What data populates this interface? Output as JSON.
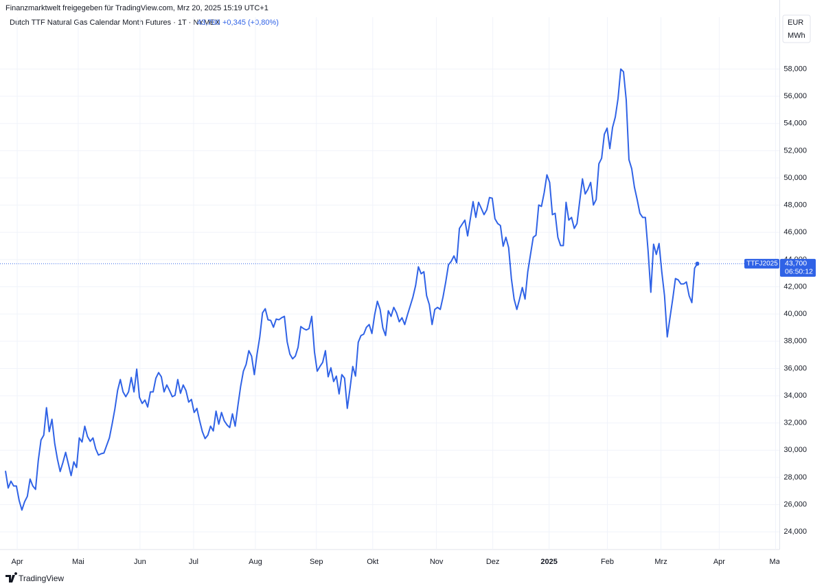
{
  "header": {
    "credit": "Finanzmarktwelt freigegeben für TradingView.com, Mrz 20, 2025 15:19 UTC+1",
    "logo": "TradingView"
  },
  "chart_data": {
    "type": "line",
    "title": "Dutch TTF Natural Gas Calendar Month Futures · 1T · NYMEX",
    "price_label": "43,700",
    "change_label": "+0,345 (+0,80%)",
    "symbol": "TTFJ2025",
    "last_label": "43,700",
    "countdown": "06:50:12",
    "unit_currency": "EUR",
    "unit_measure": "MWh",
    "grid": true,
    "series": [
      {
        "name": "TTFJ2025",
        "color": "#2f62e6",
        "values": [
          28480,
          27220,
          27720,
          27370,
          27370,
          26310,
          25600,
          26210,
          26610,
          27880,
          27370,
          27120,
          29240,
          30750,
          31100,
          33120,
          31360,
          32270,
          30500,
          29340,
          28430,
          29090,
          29840,
          28990,
          28130,
          29140,
          28730,
          30900,
          30600,
          31760,
          31000,
          30650,
          30900,
          30100,
          29640,
          29740,
          29790,
          30350,
          30900,
          31910,
          33020,
          34380,
          35190,
          34280,
          33930,
          34280,
          35340,
          34280,
          35950,
          33880,
          33430,
          33680,
          33170,
          34280,
          34280,
          35290,
          35700,
          35390,
          34280,
          34790,
          34380,
          33930,
          34030,
          35190,
          34180,
          34790,
          34380,
          33530,
          33730,
          32770,
          33070,
          32160,
          31360,
          30850,
          31100,
          31760,
          31410,
          32870,
          31910,
          32770,
          32160,
          31860,
          31660,
          32670,
          31760,
          33270,
          34690,
          35800,
          36300,
          37310,
          36910,
          35550,
          37060,
          38320,
          40090,
          40390,
          39580,
          39530,
          39030,
          39630,
          39580,
          39730,
          39830,
          37970,
          37060,
          36710,
          36910,
          37560,
          39080,
          38930,
          38830,
          38930,
          39830,
          37210,
          35800,
          36150,
          36450,
          37310,
          35390,
          36050,
          35040,
          35440,
          34130,
          35550,
          35290,
          33070,
          34540,
          36150,
          35440,
          37920,
          38420,
          38520,
          39030,
          39230,
          38570,
          39940,
          40940,
          40340,
          38980,
          38420,
          40240,
          39830,
          40490,
          40090,
          39430,
          39730,
          39230,
          39940,
          40590,
          41250,
          42110,
          43470,
          42960,
          43110,
          41350,
          40690,
          39230,
          40340,
          40490,
          40340,
          41250,
          42360,
          43620,
          43870,
          44270,
          43770,
          46290,
          46600,
          46900,
          45740,
          47000,
          48260,
          47100,
          48210,
          47760,
          47300,
          47660,
          48560,
          48510,
          47000,
          46650,
          46500,
          44980,
          45640,
          44880,
          42610,
          41100,
          40340,
          41100,
          41950,
          41100,
          43110,
          44380,
          45640,
          45790,
          48010,
          47910,
          48920,
          50230,
          49670,
          47300,
          47400,
          45640,
          45030,
          45030,
          48210,
          46900,
          47100,
          46290,
          46650,
          48310,
          49930,
          48820,
          49170,
          49670,
          48010,
          48410,
          51040,
          51440,
          53210,
          53660,
          52150,
          53710,
          54470,
          55830,
          58000,
          57800,
          55730,
          51340,
          50680,
          49320,
          48410,
          47400,
          47100,
          47100,
          44630,
          41600,
          45130,
          44380,
          45180,
          43110,
          41350,
          38320,
          39730,
          41100,
          42610,
          42510,
          42210,
          42210,
          42360,
          41350,
          40840,
          43370,
          43700
        ]
      }
    ],
    "xlim": [
      -2,
      283
    ],
    "xticks": [
      {
        "value": 4.3,
        "label": "Apr"
      },
      {
        "value": 26.6,
        "label": "Mai"
      },
      {
        "value": 49.2,
        "label": "Jun"
      },
      {
        "value": 68.8,
        "label": "Jul"
      },
      {
        "value": 91.4,
        "label": "Aug"
      },
      {
        "value": 113.7,
        "label": "Sep"
      },
      {
        "value": 134.3,
        "label": "Okt"
      },
      {
        "value": 157.6,
        "label": "Nov"
      },
      {
        "value": 178.2,
        "label": "Dez"
      },
      {
        "value": 198.8,
        "label": "2025"
      },
      {
        "value": 220.1,
        "label": "Feb"
      },
      {
        "value": 239.7,
        "label": "Mrz"
      },
      {
        "value": 261.0,
        "label": "Apr"
      },
      {
        "value": 281.6,
        "label": "Mai"
      }
    ],
    "ylim": [
      22700,
      60800
    ],
    "yticks": [
      {
        "value": 24000,
        "label": "24,000"
      },
      {
        "value": 26000,
        "label": "26,000"
      },
      {
        "value": 28000,
        "label": "28,000"
      },
      {
        "value": 30000,
        "label": "30,000"
      },
      {
        "value": 32000,
        "label": "32,000"
      },
      {
        "value": 34000,
        "label": "34,000"
      },
      {
        "value": 36000,
        "label": "36,000"
      },
      {
        "value": 38000,
        "label": "38,000"
      },
      {
        "value": 40000,
        "label": "40,000"
      },
      {
        "value": 42000,
        "label": "42,000"
      },
      {
        "value": 44000,
        "label": "44,000"
      },
      {
        "value": 46000,
        "label": "46,000"
      },
      {
        "value": 48000,
        "label": "48,000"
      },
      {
        "value": 50000,
        "label": "50,000"
      },
      {
        "value": 52000,
        "label": "52,000"
      },
      {
        "value": 54000,
        "label": "54,000"
      },
      {
        "value": 56000,
        "label": "56,000"
      },
      {
        "value": 58000,
        "label": "58,000"
      }
    ]
  }
}
